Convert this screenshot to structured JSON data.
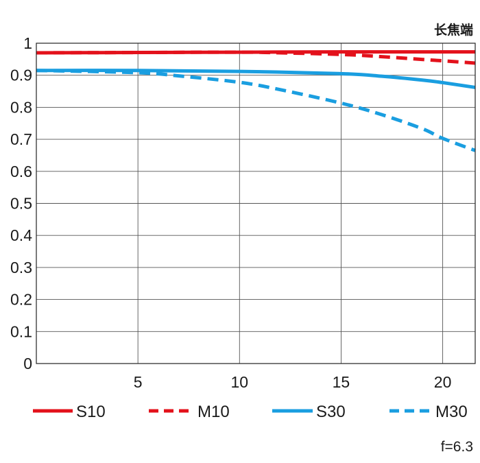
{
  "chart_data": {
    "type": "line",
    "title": "长焦端",
    "note": "f=6.3",
    "xlim": [
      0,
      21.6
    ],
    "ylim": [
      0,
      1
    ],
    "x_ticks": [
      5,
      10,
      15,
      20
    ],
    "y_ticks": [
      0,
      0.1,
      0.2,
      0.3,
      0.4,
      0.5,
      0.6,
      0.7,
      0.8,
      0.9,
      1
    ],
    "y_tick_labels": [
      "0",
      "0.1",
      "0.2",
      "0.3",
      "0.4",
      "0.5",
      "0.6",
      "0.7",
      "0.8",
      "0.9",
      "1"
    ],
    "grid": true,
    "legend_position": "bottom",
    "series": [
      {
        "name": "S10",
        "color": "#e3111b",
        "dash": "solid",
        "x": [
          0,
          5,
          10,
          15,
          20,
          21.6
        ],
        "y": [
          0.97,
          0.971,
          0.972,
          0.973,
          0.973,
          0.973
        ]
      },
      {
        "name": "M10",
        "color": "#e3111b",
        "dash": "dashed",
        "x": [
          0,
          5,
          10,
          12,
          15,
          17,
          20,
          21.6
        ],
        "y": [
          0.97,
          0.971,
          0.972,
          0.97,
          0.965,
          0.958,
          0.945,
          0.938
        ]
      },
      {
        "name": "S30",
        "color": "#1a9ee0",
        "dash": "solid",
        "x": [
          0,
          5,
          10,
          15,
          17,
          19,
          20,
          21.6
        ],
        "y": [
          0.915,
          0.915,
          0.912,
          0.905,
          0.897,
          0.885,
          0.877,
          0.862
        ]
      },
      {
        "name": "M30",
        "color": "#1a9ee0",
        "dash": "dashed",
        "x": [
          0,
          5,
          7,
          10,
          12,
          15,
          17,
          19,
          20,
          21.6
        ],
        "y": [
          0.915,
          0.908,
          0.898,
          0.878,
          0.855,
          0.813,
          0.777,
          0.733,
          0.703,
          0.665
        ]
      }
    ]
  }
}
